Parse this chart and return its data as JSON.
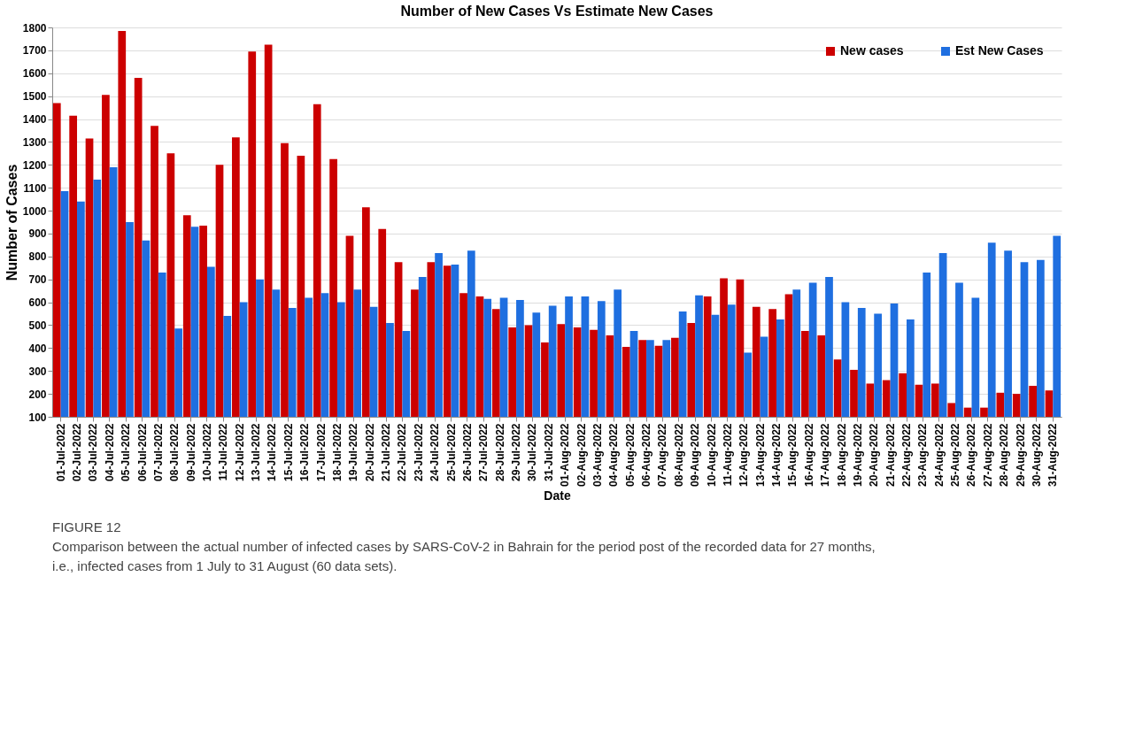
{
  "chart_data": {
    "type": "bar",
    "title": "Number of New Cases Vs Estimate New Cases",
    "xlabel": "Date",
    "ylabel": "Number of Cases",
    "categories": [
      "01-Jul-2022",
      "02-Jul-2022",
      "03-Jul-2022",
      "04-Jul-2022",
      "05-Jul-2022",
      "06-Jul-2022",
      "07-Jul-2022",
      "08-Jul-2022",
      "09-Jul-2022",
      "10-Jul-2022",
      "11-Jul-2022",
      "12-Jul-2022",
      "13-Jul-2022",
      "14-Jul-2022",
      "15-Jul-2022",
      "16-Jul-2022",
      "17-Jul-2022",
      "18-Jul-2022",
      "19-Jul-2022",
      "20-Jul-2022",
      "21-Jul-2022",
      "22-Jul-2022",
      "23-Jul-2022",
      "24-Jul-2022",
      "25-Jul-2022",
      "26-Jul-2022",
      "27-Jul-2022",
      "28-Jul-2022",
      "29-Jul-2022",
      "30-Jul-2022",
      "31-Jul-2022",
      "01-Aug-2022",
      "02-Aug-2022",
      "03-Aug-2022",
      "04-Aug-2022",
      "05-Aug-2022",
      "06-Aug-2022",
      "07-Aug-2022",
      "08-Aug-2022",
      "09-Aug-2022",
      "10-Aug-2022",
      "11-Aug-2022",
      "12-Aug-2022",
      "13-Aug-2022",
      "14-Aug-2022",
      "15-Aug-2022",
      "16-Aug-2022",
      "17-Aug-2022",
      "18-Aug-2022",
      "19-Aug-2022",
      "20-Aug-2022",
      "21-Aug-2022",
      "22-Aug-2022",
      "23-Aug-2022",
      "24-Aug-2022",
      "25-Aug-2022",
      "26-Aug-2022",
      "27-Aug-2022",
      "28-Aug-2022",
      "29-Aug-2022",
      "30-Aug-2022",
      "31-Aug-2022"
    ],
    "series": [
      {
        "name": "New cases",
        "color": "#cc0000",
        "values": [
          1470,
          1415,
          1315,
          1505,
          1785,
          1580,
          1370,
          1250,
          980,
          935,
          1200,
          1320,
          1695,
          1725,
          1295,
          1240,
          1465,
          1225,
          890,
          1015,
          920,
          775,
          655,
          775,
          760,
          640,
          625,
          570,
          490,
          500,
          425,
          505,
          490,
          480,
          455,
          405,
          435,
          410,
          445,
          510,
          625,
          705,
          700,
          580,
          570,
          635,
          475,
          455,
          350,
          305,
          245,
          260,
          290,
          240,
          245,
          160,
          140,
          140,
          205,
          200,
          235,
          215
        ]
      },
      {
        "name": "Est New Cases",
        "color": "#1f6fe0",
        "values": [
          1085,
          1040,
          1135,
          1190,
          950,
          870,
          730,
          485,
          930,
          755,
          540,
          600,
          700,
          655,
          575,
          620,
          640,
          600,
          655,
          580,
          510,
          475,
          710,
          815,
          765,
          825,
          615,
          620,
          610,
          555,
          585,
          625,
          625,
          605,
          655,
          475,
          435,
          435,
          560,
          630,
          545,
          590,
          380,
          450,
          525,
          655,
          685,
          710,
          600,
          575,
          550,
          595,
          525,
          730,
          815,
          685,
          620,
          860,
          825,
          775,
          785,
          890
        ]
      }
    ],
    "ylim": [
      100,
      1800
    ],
    "yticks": [
      100,
      200,
      300,
      400,
      500,
      600,
      700,
      800,
      900,
      1000,
      1100,
      1200,
      1300,
      1400,
      1500,
      1600,
      1700,
      1800
    ],
    "grid": "y",
    "legend": "top right",
    "annotations": [
      "FIGURE 12",
      "Comparison between the actual number of infected cases by SARS-CoV-2 in Bahrain for the period post of the recorded data for 27 months,",
      "i.e., infected cases from 1 July to 31 August (60 data sets)."
    ]
  }
}
